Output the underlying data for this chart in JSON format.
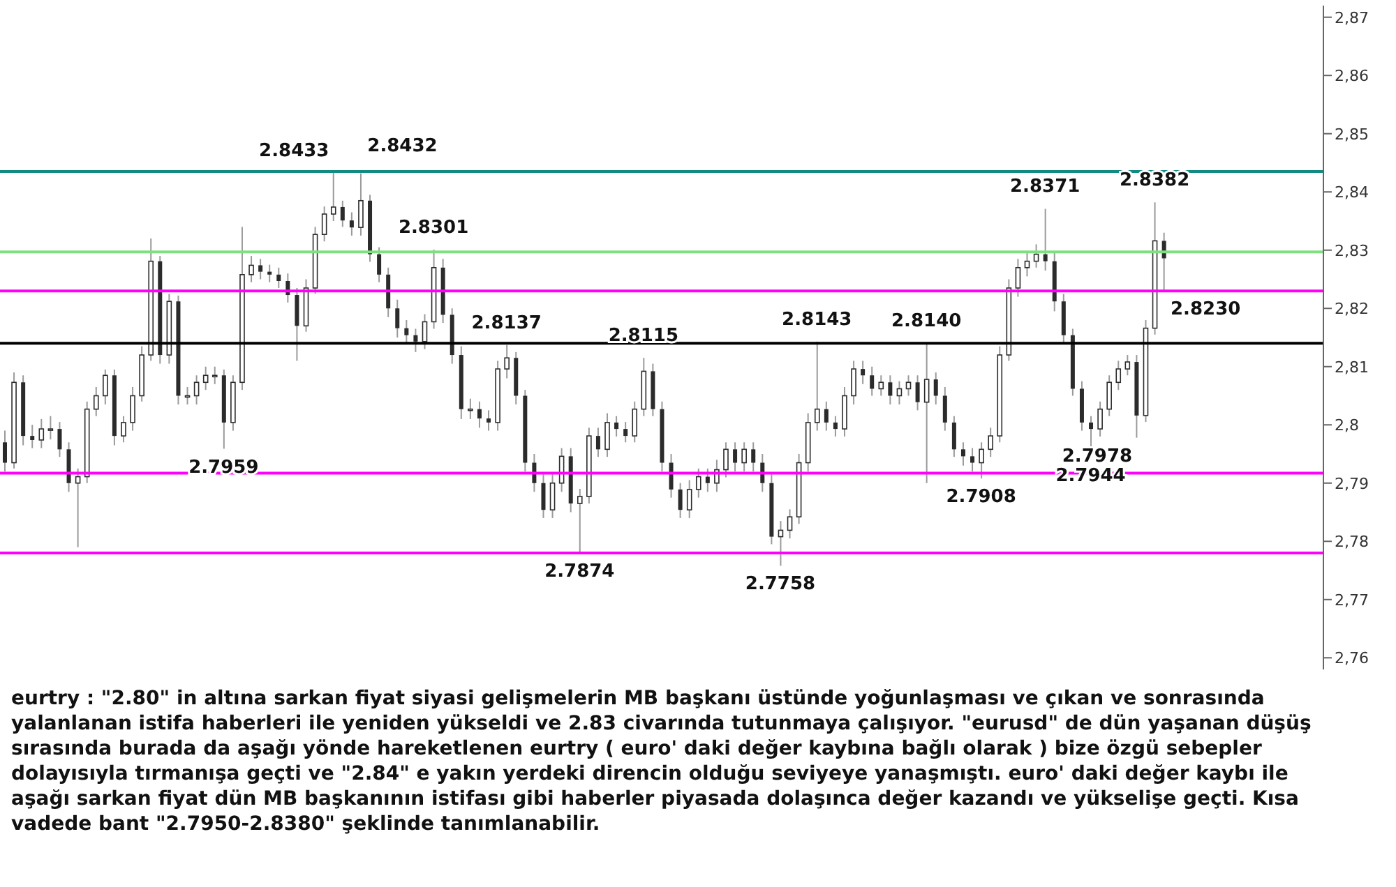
{
  "chart_data": {
    "type": "candlestick",
    "color": "#2b2b2b",
    "tick_labels": "y",
    "categories": [
      null,
      null,
      null,
      null,
      null,
      null,
      null,
      null,
      null,
      null,
      null,
      null,
      null,
      null,
      null,
      null,
      null,
      null,
      null,
      null,
      null,
      null,
      null,
      null,
      null,
      null,
      null,
      null,
      null,
      null,
      null,
      null,
      null,
      null,
      null,
      null,
      null,
      null,
      null,
      null,
      null,
      null,
      null,
      null,
      null,
      null,
      null,
      null,
      null,
      null,
      null,
      null,
      null,
      null,
      null,
      null,
      null,
      null,
      null,
      null,
      null,
      null,
      null,
      null,
      null,
      null,
      null,
      null,
      null,
      null,
      null,
      null,
      null,
      null,
      null,
      null,
      null,
      null,
      null,
      null,
      null,
      null,
      null,
      null,
      null,
      null,
      null,
      null,
      null,
      null,
      null,
      null,
      null,
      null,
      null,
      null,
      null,
      null,
      null,
      null,
      null,
      null,
      null,
      null,
      null,
      null,
      null,
      null,
      null,
      null,
      null,
      null,
      null,
      null,
      null,
      null,
      null,
      null,
      null,
      null,
      null,
      null,
      null,
      null,
      null,
      null,
      null,
      null,
      null,
      null,
      null,
      null,
      null,
      null,
      null,
      null,
      null,
      null,
      null,
      null,
      null,
      null,
      null,
      null,
      null
    ],
    "ohlc": [
      [
        2.797,
        2.799,
        2.792,
        2.7935
      ],
      [
        2.7935,
        2.809,
        2.7925,
        2.8073
      ],
      [
        2.8073,
        2.8085,
        2.7965,
        2.7981
      ],
      [
        2.7981,
        2.8,
        2.796,
        2.7974
      ],
      [
        2.7974,
        2.801,
        2.796,
        2.7993
      ],
      [
        2.7993,
        2.8015,
        2.7975,
        2.7993
      ],
      [
        2.7993,
        2.8005,
        2.7945,
        2.7958
      ],
      [
        2.7958,
        2.797,
        2.7885,
        2.79
      ],
      [
        2.79,
        2.7925,
        2.779,
        2.7911
      ],
      [
        2.7911,
        2.804,
        2.79,
        2.8027
      ],
      [
        2.8027,
        2.8065,
        2.8015,
        2.805
      ],
      [
        2.805,
        2.8095,
        2.8035,
        2.8085
      ],
      [
        2.8085,
        2.8095,
        2.7965,
        2.7981
      ],
      [
        2.7981,
        2.8015,
        2.797,
        2.8004
      ],
      [
        2.8004,
        2.8065,
        2.799,
        2.805
      ],
      [
        2.805,
        2.8135,
        2.804,
        2.812
      ],
      [
        2.812,
        2.832,
        2.811,
        2.8281
      ],
      [
        2.8281,
        2.829,
        2.8105,
        2.812
      ],
      [
        2.812,
        2.8225,
        2.8105,
        2.8212
      ],
      [
        2.8212,
        2.8222,
        2.8035,
        2.805
      ],
      [
        2.805,
        2.8065,
        2.8035,
        2.805
      ],
      [
        2.805,
        2.8085,
        2.8035,
        2.8073
      ],
      [
        2.8073,
        2.81,
        2.806,
        2.8085
      ],
      [
        2.8085,
        2.81,
        2.807,
        2.8085
      ],
      [
        2.8085,
        2.8095,
        2.7959,
        2.8004
      ],
      [
        2.8004,
        2.8085,
        2.799,
        2.8073
      ],
      [
        2.8073,
        2.834,
        2.806,
        2.8258
      ],
      [
        2.8258,
        2.829,
        2.8245,
        2.8274
      ],
      [
        2.8274,
        2.8285,
        2.825,
        2.8263
      ],
      [
        2.8263,
        2.8275,
        2.8245,
        2.8258
      ],
      [
        2.8258,
        2.827,
        2.8235,
        2.8247
      ],
      [
        2.8247,
        2.826,
        2.821,
        2.8223
      ],
      [
        2.8223,
        2.8235,
        2.811,
        2.817
      ],
      [
        2.817,
        2.825,
        2.816,
        2.8235
      ],
      [
        2.8235,
        2.834,
        2.8225,
        2.8327
      ],
      [
        2.8327,
        2.8375,
        2.8315,
        2.8362
      ],
      [
        2.8362,
        2.8433,
        2.835,
        2.8374
      ],
      [
        2.8374,
        2.8385,
        2.834,
        2.8351
      ],
      [
        2.8351,
        2.8365,
        2.8325,
        2.8339
      ],
      [
        2.8339,
        2.8432,
        2.8325,
        2.8385
      ],
      [
        2.8385,
        2.8395,
        2.828,
        2.8293
      ],
      [
        2.8293,
        2.8305,
        2.8245,
        2.8258
      ],
      [
        2.8258,
        2.827,
        2.8185,
        2.82
      ],
      [
        2.82,
        2.8215,
        2.815,
        2.8166
      ],
      [
        2.8166,
        2.818,
        2.814,
        2.8154
      ],
      [
        2.8154,
        2.8165,
        2.8125,
        2.8143
      ],
      [
        2.8143,
        2.819,
        2.813,
        2.8177
      ],
      [
        2.8177,
        2.8301,
        2.8165,
        2.827
      ],
      [
        2.827,
        2.8285,
        2.8175,
        2.8189
      ],
      [
        2.8189,
        2.82,
        2.8105,
        2.812
      ],
      [
        2.812,
        2.8135,
        2.801,
        2.8027
      ],
      [
        2.8027,
        2.8045,
        2.801,
        2.8027
      ],
      [
        2.8027,
        2.804,
        2.7995,
        2.8011
      ],
      [
        2.8011,
        2.8025,
        2.799,
        2.8004
      ],
      [
        2.8004,
        2.811,
        2.799,
        2.8096
      ],
      [
        2.8096,
        2.8137,
        2.808,
        2.8115
      ],
      [
        2.8115,
        2.8125,
        2.8035,
        2.805
      ],
      [
        2.805,
        2.806,
        2.792,
        2.7935
      ],
      [
        2.7935,
        2.795,
        2.7885,
        2.79
      ],
      [
        2.79,
        2.7915,
        2.784,
        2.7854
      ],
      [
        2.7854,
        2.7915,
        2.784,
        2.79
      ],
      [
        2.79,
        2.796,
        2.7885,
        2.7946
      ],
      [
        2.7946,
        2.796,
        2.785,
        2.7865
      ],
      [
        2.7865,
        2.789,
        2.778,
        2.7877
      ],
      [
        2.7877,
        2.7995,
        2.7865,
        2.7981
      ],
      [
        2.7981,
        2.7995,
        2.7945,
        2.7958
      ],
      [
        2.7958,
        2.802,
        2.7945,
        2.8004
      ],
      [
        2.8004,
        2.8015,
        2.798,
        2.7993
      ],
      [
        2.7993,
        2.8005,
        2.797,
        2.7981
      ],
      [
        2.7981,
        2.804,
        2.797,
        2.8027
      ],
      [
        2.8027,
        2.8115,
        2.8015,
        2.8092
      ],
      [
        2.8092,
        2.8105,
        2.8015,
        2.8027
      ],
      [
        2.8027,
        2.804,
        2.792,
        2.7935
      ],
      [
        2.7935,
        2.795,
        2.7875,
        2.7889
      ],
      [
        2.7889,
        2.79,
        2.784,
        2.7854
      ],
      [
        2.7854,
        2.7905,
        2.784,
        2.7889
      ],
      [
        2.7889,
        2.7925,
        2.7875,
        2.7911
      ],
      [
        2.7911,
        2.7925,
        2.7885,
        2.79
      ],
      [
        2.79,
        2.794,
        2.7885,
        2.7923
      ],
      [
        2.7923,
        2.797,
        2.791,
        2.7958
      ],
      [
        2.7958,
        2.797,
        2.792,
        2.7935
      ],
      [
        2.7935,
        2.797,
        2.792,
        2.7958
      ],
      [
        2.7958,
        2.797,
        2.792,
        2.7935
      ],
      [
        2.7935,
        2.795,
        2.7885,
        2.79
      ],
      [
        2.79,
        2.7915,
        2.7795,
        2.7808
      ],
      [
        2.7808,
        2.7835,
        2.7758,
        2.7819
      ],
      [
        2.7819,
        2.7855,
        2.7805,
        2.7842
      ],
      [
        2.7842,
        2.795,
        2.783,
        2.7935
      ],
      [
        2.7935,
        2.802,
        2.792,
        2.8004
      ],
      [
        2.8004,
        2.8143,
        2.799,
        2.8027
      ],
      [
        2.8027,
        2.804,
        2.799,
        2.8004
      ],
      [
        2.8004,
        2.8015,
        2.798,
        2.7993
      ],
      [
        2.7993,
        2.8065,
        2.798,
        2.805
      ],
      [
        2.805,
        2.811,
        2.8035,
        2.8096
      ],
      [
        2.8096,
        2.811,
        2.807,
        2.8085
      ],
      [
        2.8085,
        2.81,
        2.805,
        2.8062
      ],
      [
        2.8062,
        2.8085,
        2.805,
        2.8073
      ],
      [
        2.8073,
        2.8085,
        2.8035,
        2.805
      ],
      [
        2.805,
        2.8075,
        2.8035,
        2.8062
      ],
      [
        2.8062,
        2.8085,
        2.805,
        2.8073
      ],
      [
        2.8073,
        2.8085,
        2.8025,
        2.8039
      ],
      [
        2.8039,
        2.814,
        2.79,
        2.8078
      ],
      [
        2.8078,
        2.809,
        2.8035,
        2.805
      ],
      [
        2.805,
        2.8065,
        2.799,
        2.8004
      ],
      [
        2.8004,
        2.8015,
        2.7945,
        2.7958
      ],
      [
        2.7958,
        2.797,
        2.793,
        2.7946
      ],
      [
        2.7946,
        2.796,
        2.792,
        2.7935
      ],
      [
        2.7935,
        2.797,
        2.7908,
        2.7958
      ],
      [
        2.7958,
        2.7995,
        2.7945,
        2.7981
      ],
      [
        2.7981,
        2.8135,
        2.797,
        2.812
      ],
      [
        2.812,
        2.825,
        2.811,
        2.8235
      ],
      [
        2.8235,
        2.8285,
        2.822,
        2.827
      ],
      [
        2.827,
        2.8295,
        2.8255,
        2.8281
      ],
      [
        2.8281,
        2.831,
        2.827,
        2.8293
      ],
      [
        2.8293,
        2.8371,
        2.8265,
        2.8281
      ],
      [
        2.8281,
        2.8295,
        2.8195,
        2.8212
      ],
      [
        2.8212,
        2.8225,
        2.814,
        2.8154
      ],
      [
        2.8154,
        2.8165,
        2.805,
        2.8062
      ],
      [
        2.8062,
        2.8075,
        2.799,
        2.8004
      ],
      [
        2.8004,
        2.8015,
        2.7944,
        2.7993
      ],
      [
        2.7993,
        2.804,
        2.798,
        2.8027
      ],
      [
        2.8027,
        2.8085,
        2.8015,
        2.8073
      ],
      [
        2.8073,
        2.811,
        2.806,
        2.8096
      ],
      [
        2.8096,
        2.812,
        2.8085,
        2.8108
      ],
      [
        2.8108,
        2.812,
        2.7978,
        2.8016
      ],
      [
        2.8016,
        2.818,
        2.8005,
        2.8166
      ],
      [
        2.8166,
        2.8382,
        2.8155,
        2.8316
      ],
      [
        2.8316,
        2.833,
        2.823,
        2.8286
      ],
      null,
      null,
      null,
      null,
      null,
      null,
      null,
      null,
      null,
      null,
      null,
      null,
      null,
      null,
      null,
      null,
      null
    ],
    "ylim": [
      2.758,
      2.872
    ],
    "yticks": [
      {
        "value": 2.76,
        "label": "2,76"
      },
      {
        "value": 2.77,
        "label": "2,77"
      },
      {
        "value": 2.78,
        "label": "2,78"
      },
      {
        "value": 2.79,
        "label": "2,79"
      },
      {
        "value": 2.8,
        "label": "2,8"
      },
      {
        "value": 2.81,
        "label": "2,81"
      },
      {
        "value": 2.82,
        "label": "2,82"
      },
      {
        "value": 2.83,
        "label": "2,83"
      },
      {
        "value": 2.84,
        "label": "2,84"
      },
      {
        "value": 2.85,
        "label": "2,85"
      },
      {
        "value": 2.86,
        "label": "2,86"
      },
      {
        "value": 2.87,
        "label": "2,87"
      }
    ],
    "ref_lines": [
      {
        "axis": "y",
        "value": 2.8435,
        "color": "#138a82"
      },
      {
        "axis": "y",
        "value": 2.814,
        "color": "#000000"
      },
      {
        "axis": "y",
        "value": 2.778,
        "color": "#ff00ff"
      },
      {
        "axis": "y",
        "value": 2.7917,
        "color": "#ff00ff"
      },
      {
        "axis": "y",
        "value": 2.823,
        "color": "#ff00ff"
      },
      {
        "axis": "y",
        "value": 2.8297,
        "color": "#7fe07f"
      }
    ],
    "annotations": [
      {
        "text": "2.8433",
        "y": 2.8433
      },
      {
        "text": "2.8432",
        "y": 2.8432
      },
      {
        "text": "2.8301",
        "y": 2.8301
      },
      {
        "text": "2.8137",
        "y": 2.8137
      },
      {
        "text": "2.8115",
        "y": 2.8115
      },
      {
        "text": "2.8143",
        "y": 2.8143
      },
      {
        "text": "2.8140",
        "y": 2.814
      },
      {
        "text": "2.8371",
        "y": 2.8371
      },
      {
        "text": "2.8382",
        "y": 2.8382
      },
      {
        "text": "2.7959",
        "y": 2.7959
      },
      {
        "text": "2.7874",
        "y": 2.778
      },
      {
        "text": "2.7758",
        "y": 2.7758
      },
      {
        "text": "2.7908",
        "y": 2.7908
      },
      {
        "text": "2.7944",
        "y": 2.7944
      },
      {
        "text": "2.7978",
        "y": 2.7978
      },
      {
        "text": "2.8230",
        "y": 2.823
      },
      "eurtry : \"2.80\" in altına sarkan fiyat siyasi gelişmelerin MB başkanı üstünde yoğunlaşması ve çıkan ve sonrasında yalanlanan istifa haberleri ile yeniden yükseldi ve 2.83 civarında tutunmaya çalışıyor. \"eurusd\" de dün yaşanan düşüş sırasında burada da aşağı yönde hareketlenen eurtry ( euro' daki değer kaybına bağlı olarak ) bize özgü sebepler dolayısıyla tırmanışa geçti ve \"2.84\" e yakın yerdeki direncin olduğu seviyeye yanaşmıştı. euro' daki değer kaybı ile aşağı sarkan fiyat dün MB başkanının istifası gibi haberler piyasada dolaşınca değer kazandı ve yükselişe geçti. Kısa vadede bant \"2.7950-2.8380\" şeklinde tanımlanabilir."
    ]
  }
}
